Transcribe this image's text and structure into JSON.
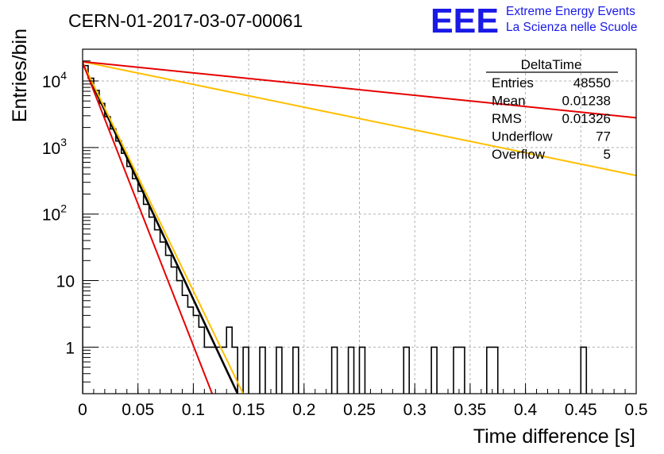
{
  "chart_data": {
    "type": "histogram",
    "title": "CERN-01-2017-03-07-00061",
    "xlabel": "Time difference [s]",
    "ylabel": "Entries/bin",
    "xlim": [
      0,
      0.5
    ],
    "ylim": [
      0.2,
      30000
    ],
    "y_scale": "log",
    "grid": true,
    "x_ticks": [
      "0",
      "0.05",
      "0.1",
      "0.15",
      "0.2",
      "0.25",
      "0.3",
      "0.35",
      "0.4",
      "0.45",
      "0.5"
    ],
    "y_ticks": [
      {
        "value": 1,
        "base": "1",
        "exp": ""
      },
      {
        "value": 10,
        "base": "10",
        "exp": ""
      },
      {
        "value": 100,
        "base": "10",
        "exp": "2"
      },
      {
        "value": 1000,
        "base": "10",
        "exp": "3"
      },
      {
        "value": 10000,
        "base": "10",
        "exp": "4"
      }
    ],
    "bin_width": 0.005,
    "bins": [
      {
        "x": 0.0,
        "y": 17000
      },
      {
        "x": 0.005,
        "y": 11000
      },
      {
        "x": 0.01,
        "y": 7200
      },
      {
        "x": 0.015,
        "y": 4600
      },
      {
        "x": 0.02,
        "y": 2900
      },
      {
        "x": 0.025,
        "y": 1900
      },
      {
        "x": 0.03,
        "y": 1250
      },
      {
        "x": 0.035,
        "y": 820
      },
      {
        "x": 0.04,
        "y": 520
      },
      {
        "x": 0.045,
        "y": 340
      },
      {
        "x": 0.05,
        "y": 220
      },
      {
        "x": 0.055,
        "y": 140
      },
      {
        "x": 0.06,
        "y": 90
      },
      {
        "x": 0.065,
        "y": 58
      },
      {
        "x": 0.07,
        "y": 38
      },
      {
        "x": 0.075,
        "y": 24
      },
      {
        "x": 0.08,
        "y": 16
      },
      {
        "x": 0.085,
        "y": 10
      },
      {
        "x": 0.09,
        "y": 6
      },
      {
        "x": 0.095,
        "y": 4
      },
      {
        "x": 0.1,
        "y": 3
      },
      {
        "x": 0.105,
        "y": 2
      },
      {
        "x": 0.11,
        "y": 1
      },
      {
        "x": 0.115,
        "y": 1
      },
      {
        "x": 0.12,
        "y": 1
      },
      {
        "x": 0.125,
        "y": 1
      },
      {
        "x": 0.13,
        "y": 2
      },
      {
        "x": 0.135,
        "y": 1
      },
      {
        "x": 0.145,
        "y": 1
      },
      {
        "x": 0.16,
        "y": 1
      },
      {
        "x": 0.175,
        "y": 1
      },
      {
        "x": 0.19,
        "y": 1
      },
      {
        "x": 0.225,
        "y": 1
      },
      {
        "x": 0.24,
        "y": 1
      },
      {
        "x": 0.25,
        "y": 1
      },
      {
        "x": 0.29,
        "y": 1
      },
      {
        "x": 0.315,
        "y": 1
      },
      {
        "x": 0.335,
        "y": 1
      },
      {
        "x": 0.34,
        "y": 1
      },
      {
        "x": 0.365,
        "y": 1
      },
      {
        "x": 0.37,
        "y": 1
      },
      {
        "x": 0.45,
        "y": 1
      }
    ],
    "fits": [
      {
        "color": "#000000",
        "points": [
          [
            0.0,
            18500
          ],
          [
            0.14,
            0.2
          ]
        ]
      },
      {
        "color": "#ffbf00",
        "points": [
          [
            0.0,
            19000
          ],
          [
            0.145,
            0.2
          ]
        ]
      },
      {
        "color": "#ffbf00",
        "points": [
          [
            0.0,
            19500
          ],
          [
            0.5,
            380
          ]
        ]
      },
      {
        "color": "#e60000",
        "points": [
          [
            0.0,
            19500
          ],
          [
            0.5,
            2800
          ]
        ]
      },
      {
        "color": "#e60000",
        "points": [
          [
            0.0,
            19000
          ],
          [
            0.117,
            0.2
          ]
        ]
      }
    ],
    "stats_box": {
      "title": "DeltaTime",
      "rows": [
        {
          "label": "Entries",
          "value": "48550"
        },
        {
          "label": "Mean",
          "value": "0.01238"
        },
        {
          "label": "RMS",
          "value": "0.01326"
        },
        {
          "label": "Underflow",
          "value": "77"
        },
        {
          "label": "Overflow",
          "value": "5"
        }
      ]
    },
    "logo": {
      "mark": "EEE",
      "line1": "Extreme Energy Events",
      "line2": "La Scienza nelle Scuole",
      "color": "#1a1ae6"
    },
    "colors": {
      "histogram": "#000000",
      "grid": "#b0b0b0"
    }
  }
}
